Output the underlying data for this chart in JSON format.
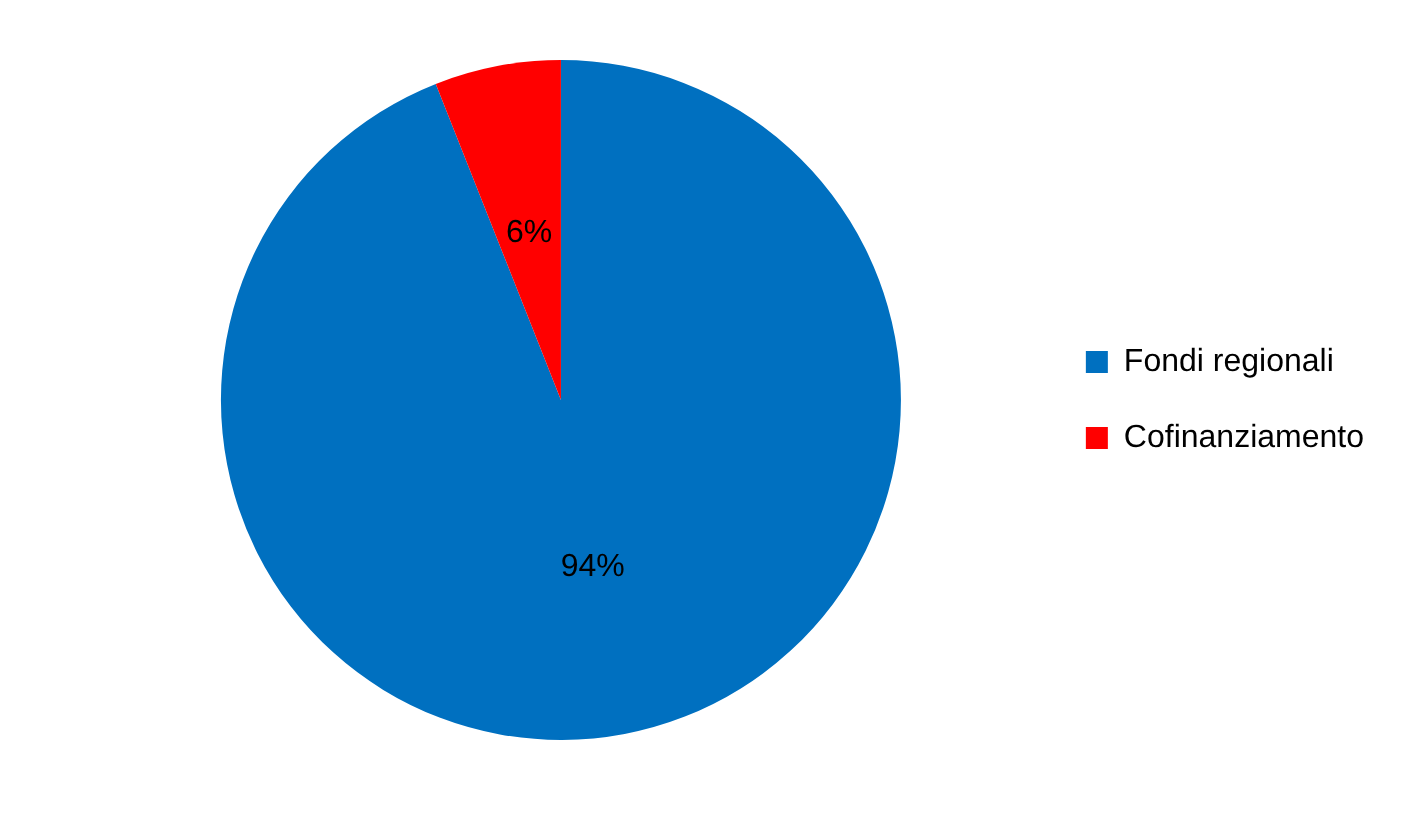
{
  "chart_data": {
    "type": "pie",
    "categories": [
      "Fondi regionali",
      "Cofinanziamento"
    ],
    "values": [
      94,
      6
    ],
    "colors": [
      "#0070c0",
      "#ff0000"
    ],
    "value_labels": [
      "94%",
      "6%"
    ],
    "legend": "right"
  }
}
